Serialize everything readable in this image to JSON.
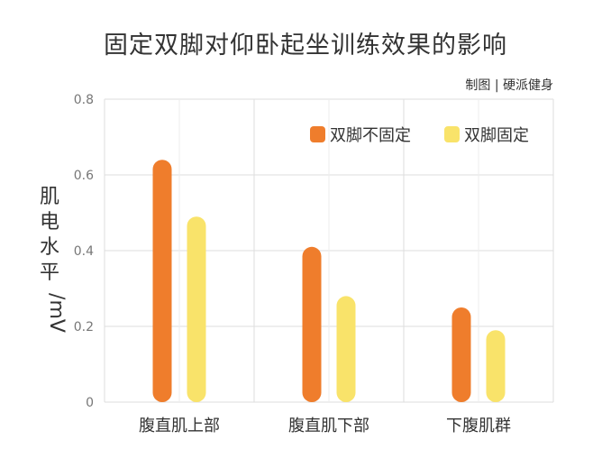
{
  "title": "固定双脚对仰卧起坐训练效果的影响",
  "credit": "制图 | 硬派健身",
  "ylabel": {
    "main": "肌电水平",
    "unit": "/mV"
  },
  "colors": {
    "series1": "#ef7d2c",
    "series2": "#f9e36a",
    "grid": "#dddddd"
  },
  "chart_data": {
    "type": "bar",
    "title": "固定双脚对仰卧起坐训练效果的影响",
    "xlabel": "",
    "ylabel": "肌电水平/mV",
    "categories": [
      "腹直肌上部",
      "腹直肌下部",
      "下腹肌群"
    ],
    "series": [
      {
        "name": "双脚不固定",
        "values": [
          0.64,
          0.41,
          0.25
        ]
      },
      {
        "name": "双脚固定",
        "values": [
          0.49,
          0.28,
          0.19
        ]
      }
    ],
    "ylim": [
      0,
      0.8
    ],
    "yticks": [
      "0",
      "0.2",
      "0.4",
      "0.6",
      "0.8"
    ],
    "grid": true,
    "legend": "top-right"
  }
}
